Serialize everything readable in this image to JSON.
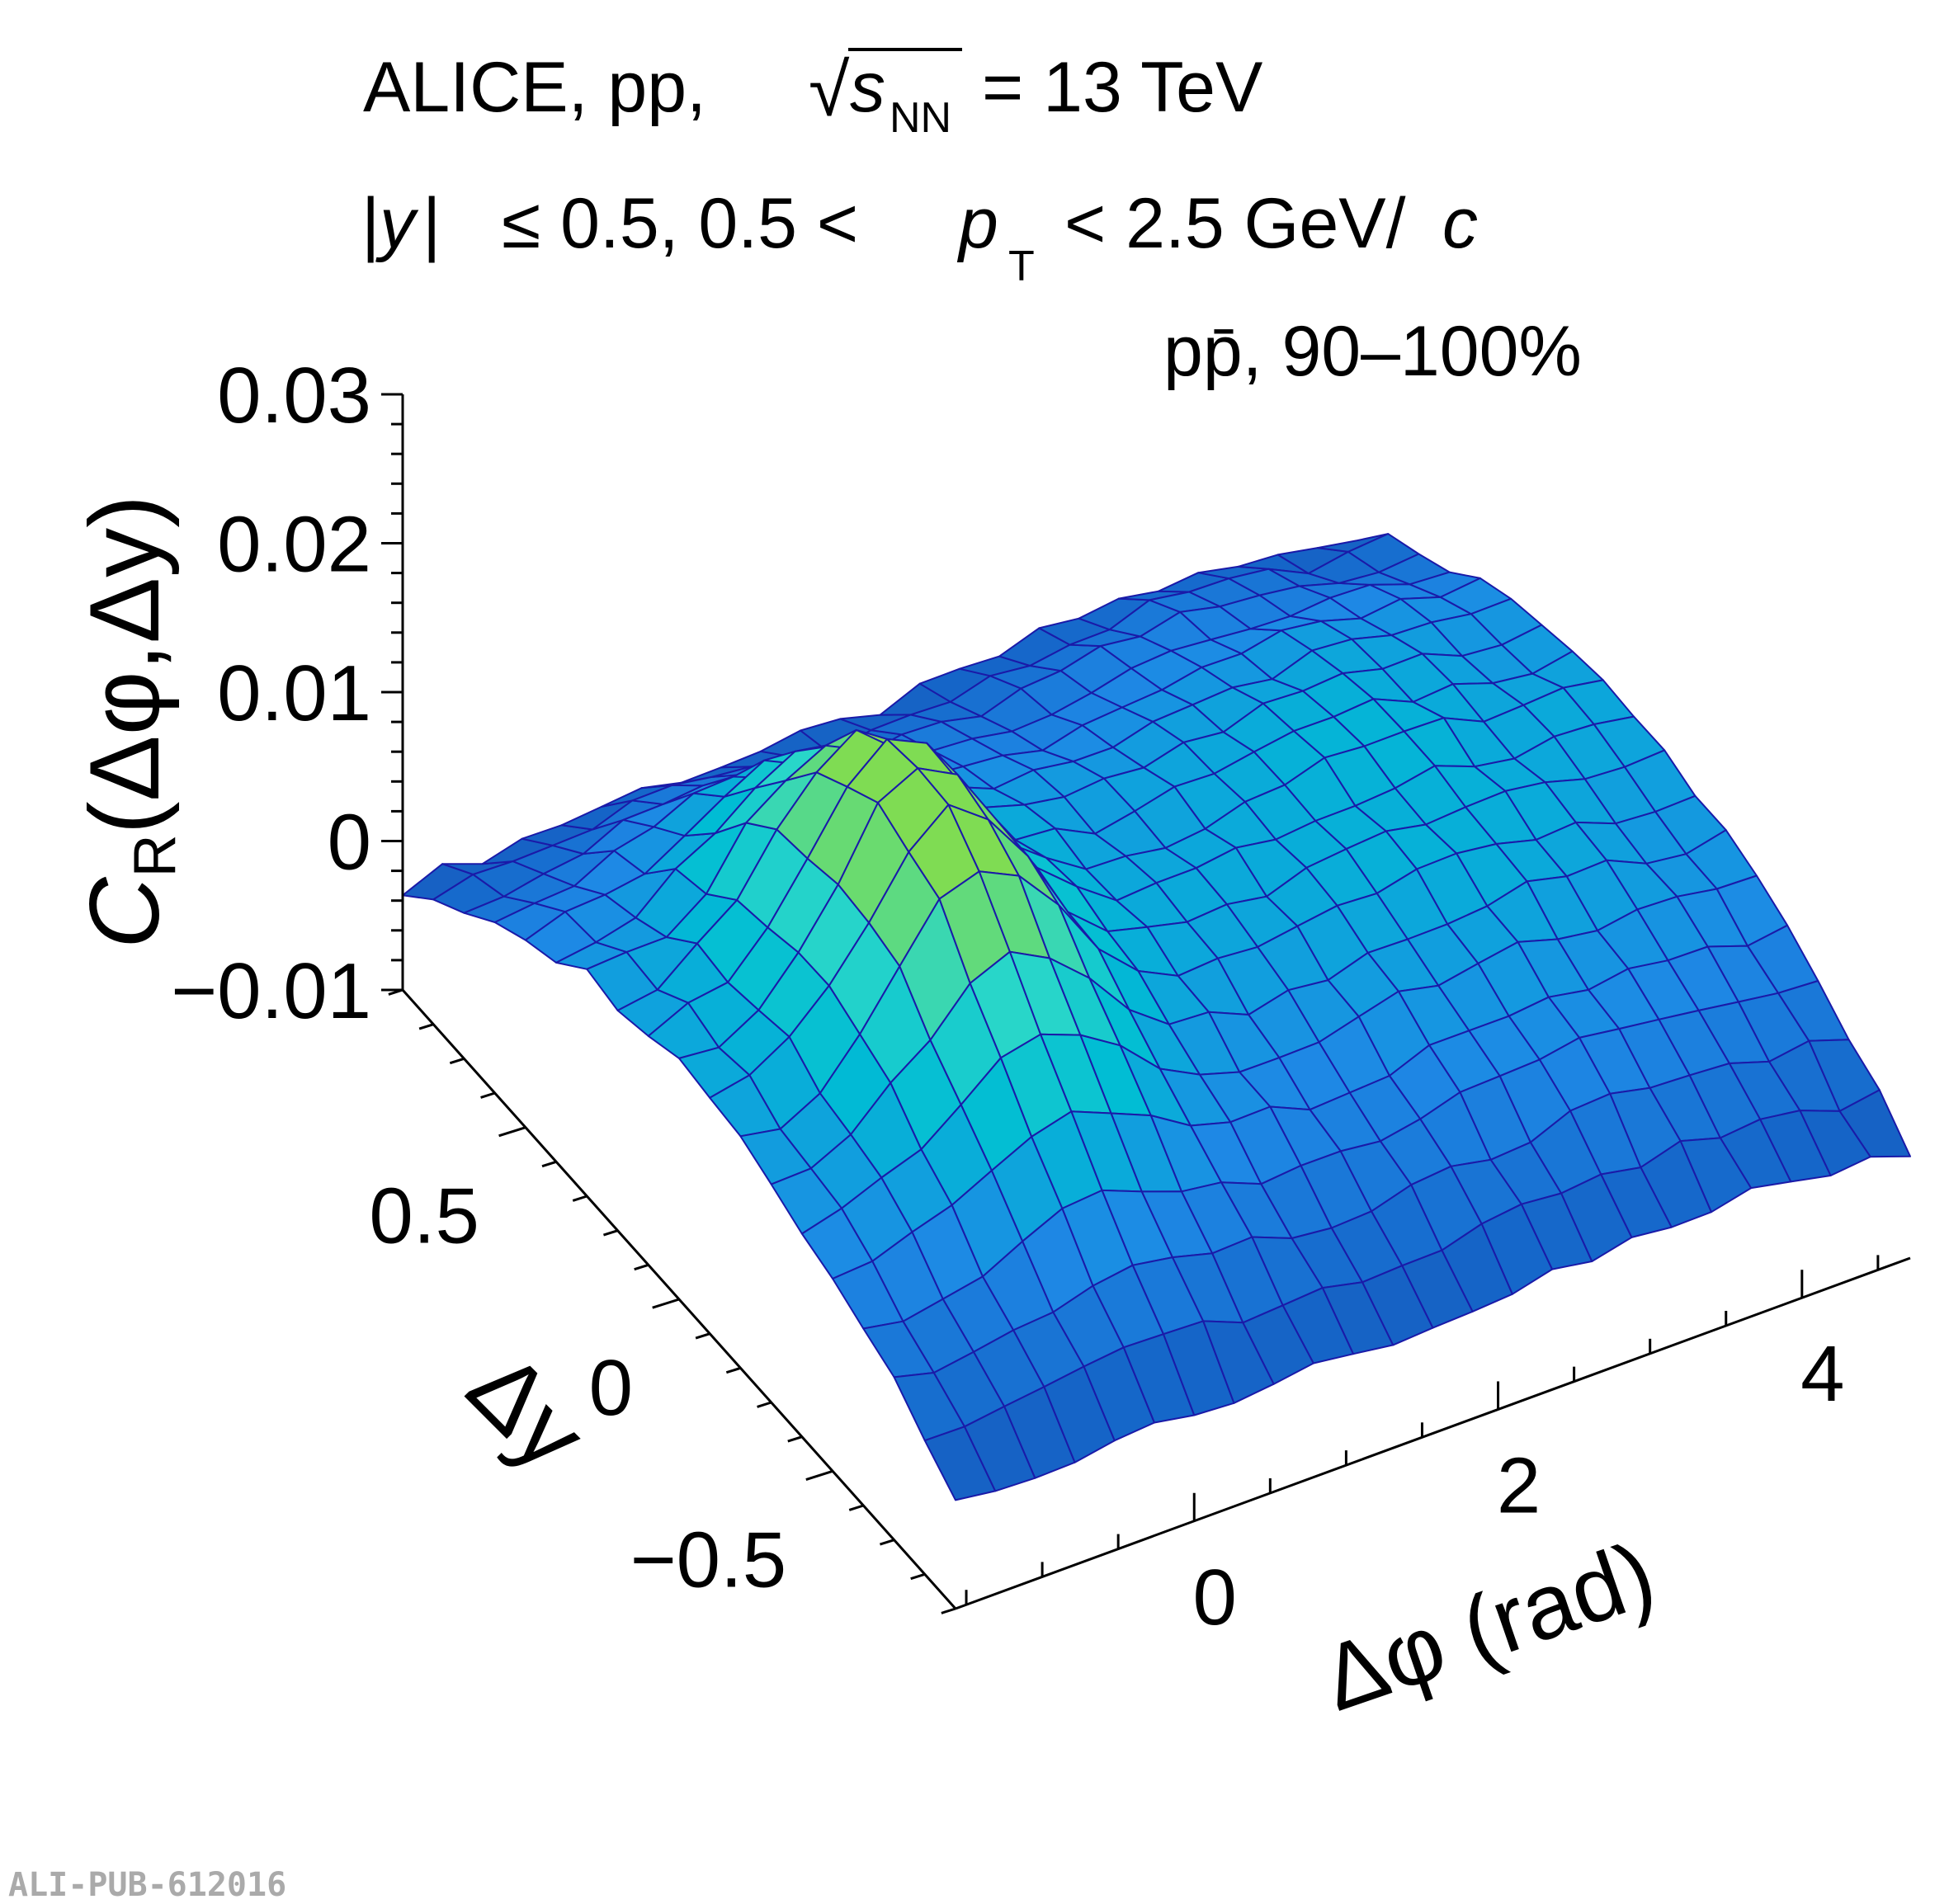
{
  "chart_data": {
    "type": "surface",
    "experiment": "ALICE",
    "system": "pp,",
    "energy_label": "= 13 TeV",
    "sqrt_symbol": "√",
    "energy_var": "s",
    "energy_sub": "NN",
    "cut_rapidity": "≤ 0.5, 0.5 <",
    "cut_pt_var": "p",
    "cut_pt_sub": "T",
    "cut_pt_range": "< 2.5 GeV/",
    "cut_pt_unit": "c",
    "cut_y_var": "y",
    "pair_label": "pp̄, 90–100%",
    "zlabel": "C",
    "zlabel_sub": "R",
    "zlabel_args": "(Δφ,Δy)",
    "ylabel": "Δy",
    "xlabel": "Δφ (rad)",
    "x_range": [
      -1.5708,
      4.7124
    ],
    "y_range": [
      -0.9,
      0.9
    ],
    "z_range": [
      -0.01,
      0.03
    ],
    "x_ticks": [
      "0",
      "2",
      "4"
    ],
    "y_ticks": [
      "0.5",
      "0",
      "−0.5"
    ],
    "z_ticks": [
      "0.03",
      "0.02",
      "0.01",
      "0",
      "−0.01"
    ],
    "surface_model": {
      "near_side_peak_height": 0.0145,
      "near_side_peak_dphi": 0.0,
      "away_side_level": 0.0095,
      "dy_acceptance_falloff": 0.9,
      "grid_dphi_bins": 24,
      "grid_dy_bins": 18
    },
    "colormap": [
      "#1e50b0",
      "#1565c8",
      "#1e88e5",
      "#00bcd4",
      "#29d6c9",
      "#7fdc52"
    ]
  },
  "watermark": "ALI-PUB-612016"
}
